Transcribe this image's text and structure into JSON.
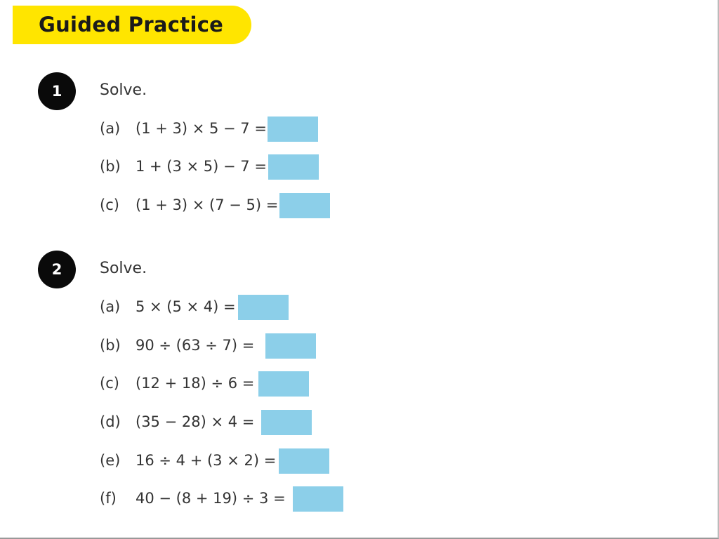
{
  "header": {
    "title": "Guided Practice",
    "banner_color": "#FFE500"
  },
  "answer_box_color": "#8ccfe9",
  "questions": [
    {
      "number": "1",
      "instruction": "Solve.",
      "parts": [
        {
          "label": "(a)",
          "expression": "(1 + 3) × 5 − 7 ="
        },
        {
          "label": "(b)",
          "expression": "1 + (3 × 5) − 7 ="
        },
        {
          "label": "(c)",
          "expression": "(1 + 3) × (7 − 5) ="
        }
      ]
    },
    {
      "number": "2",
      "instruction": "Solve.",
      "parts": [
        {
          "label": "(a)",
          "expression": "5 × (5 × 4) ="
        },
        {
          "label": "(b)",
          "expression": "90 ÷ (63 ÷ 7) ="
        },
        {
          "label": "(c)",
          "expression": "(12 + 18) ÷ 6 ="
        },
        {
          "label": "(d)",
          "expression": "(35 − 28) × 4 ="
        },
        {
          "label": "(e)",
          "expression": "16 ÷ 4 + (3 × 2) ="
        },
        {
          "label": "(f)",
          "expression": "40 − (8 + 19) ÷ 3 ="
        }
      ]
    }
  ]
}
